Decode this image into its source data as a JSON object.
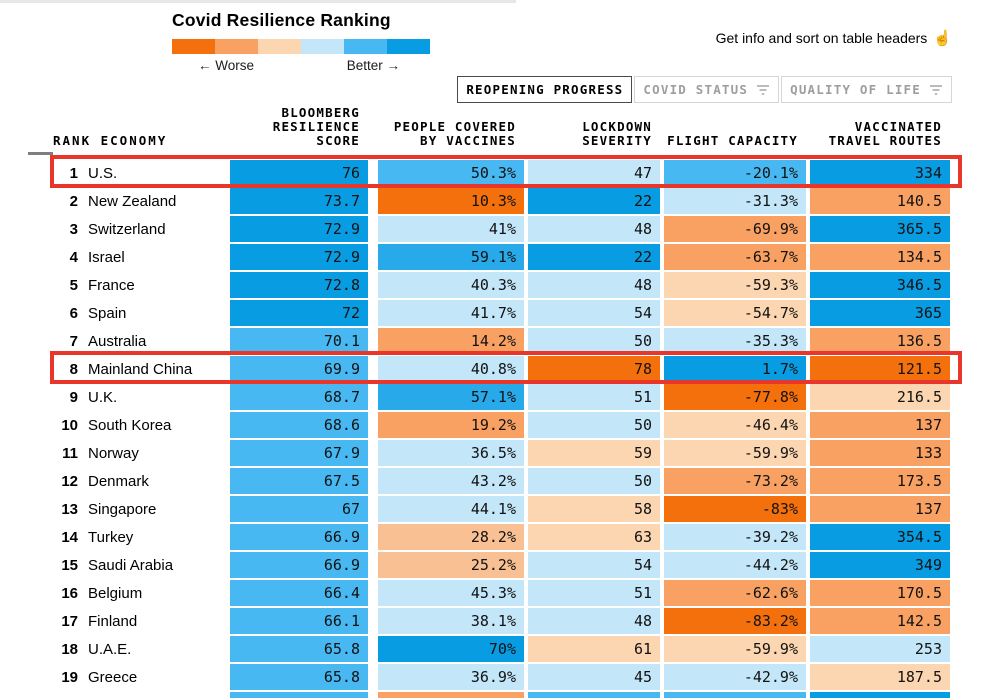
{
  "legend": {
    "title": "Covid Resilience Ranking",
    "worse_label": "← Worse",
    "better_label": "Better →"
  },
  "info": {
    "text": "Get info and sort on table headers",
    "icon": "☝"
  },
  "tabs": [
    {
      "label": "REOPENING PROGRESS",
      "active": true,
      "filter_icon": false
    },
    {
      "label": "COVID STATUS",
      "active": false,
      "filter_icon": true
    },
    {
      "label": "QUALITY OF LIFE",
      "active": false,
      "filter_icon": true
    }
  ],
  "annotations": {
    "highlight_color": "#e8362a",
    "highlighted_rows": [
      "U.S.",
      "Mainland China"
    ]
  },
  "chart_data": {
    "type": "table",
    "title": "Covid Resilience Ranking",
    "legend_note": "heatmap cells colored from orange (worse) to blue (better)",
    "palette": {
      "o3": "#f4700d",
      "o2": "#f9a163",
      "o1m": "#f9c193",
      "o1": "#fcd5b1",
      "b1": "#c3e6f9",
      "b2": "#47b8f1",
      "b2m": "#28a9e9",
      "b3": "#089de2"
    },
    "legend_bins": [
      "o3",
      "o2",
      "o1",
      "b1",
      "b2",
      "b3"
    ],
    "headers": {
      "rank_economy": "RANK ECONOMY",
      "score": [
        "BLOOMBERG",
        "RESILIENCE",
        "SCORE"
      ],
      "vaccines": [
        "PEOPLE COVERED",
        "BY VACCINES"
      ],
      "lockdown": [
        "LOCKDOWN",
        "SEVERITY"
      ],
      "flight": [
        "FLIGHT CAPACITY"
      ],
      "routes": [
        "VACCINATED",
        "TRAVEL ROUTES"
      ]
    },
    "columns": [
      "Bloomberg Resilience Score",
      "People Covered by Vaccines",
      "Lockdown Severity",
      "Flight Capacity",
      "Vaccinated Travel Routes"
    ],
    "rows": [
      {
        "rank": "1",
        "economy": "U.S.",
        "highlight": true,
        "cells": [
          {
            "v": "76",
            "c": "b3"
          },
          {
            "v": "50.3%",
            "c": "b2"
          },
          {
            "v": "47",
            "c": "b1"
          },
          {
            "v": "-20.1%",
            "c": "b2"
          },
          {
            "v": "334",
            "c": "b3"
          }
        ]
      },
      {
        "rank": "2",
        "economy": "New Zealand",
        "highlight": false,
        "cells": [
          {
            "v": "73.7",
            "c": "b3"
          },
          {
            "v": "10.3%",
            "c": "o3"
          },
          {
            "v": "22",
            "c": "b3"
          },
          {
            "v": "-31.3%",
            "c": "b1"
          },
          {
            "v": "140.5",
            "c": "o2"
          }
        ]
      },
      {
        "rank": "3",
        "economy": "Switzerland",
        "highlight": false,
        "cells": [
          {
            "v": "72.9",
            "c": "b3"
          },
          {
            "v": "41%",
            "c": "b1"
          },
          {
            "v": "48",
            "c": "b1"
          },
          {
            "v": "-69.9%",
            "c": "o2"
          },
          {
            "v": "365.5",
            "c": "b3"
          }
        ]
      },
      {
        "rank": "4",
        "economy": "Israel",
        "highlight": false,
        "cells": [
          {
            "v": "72.9",
            "c": "b3"
          },
          {
            "v": "59.1%",
            "c": "b2m"
          },
          {
            "v": "22",
            "c": "b3"
          },
          {
            "v": "-63.7%",
            "c": "o2"
          },
          {
            "v": "134.5",
            "c": "o2"
          }
        ]
      },
      {
        "rank": "5",
        "economy": "France",
        "highlight": false,
        "cells": [
          {
            "v": "72.8",
            "c": "b3"
          },
          {
            "v": "40.3%",
            "c": "b1"
          },
          {
            "v": "48",
            "c": "b1"
          },
          {
            "v": "-59.3%",
            "c": "o1"
          },
          {
            "v": "346.5",
            "c": "b3"
          }
        ]
      },
      {
        "rank": "6",
        "economy": "Spain",
        "highlight": false,
        "cells": [
          {
            "v": "72",
            "c": "b3"
          },
          {
            "v": "41.7%",
            "c": "b1"
          },
          {
            "v": "54",
            "c": "b1"
          },
          {
            "v": "-54.7%",
            "c": "o1"
          },
          {
            "v": "365",
            "c": "b3"
          }
        ]
      },
      {
        "rank": "7",
        "economy": "Australia",
        "highlight": false,
        "cells": [
          {
            "v": "70.1",
            "c": "b2"
          },
          {
            "v": "14.2%",
            "c": "o2"
          },
          {
            "v": "50",
            "c": "b1"
          },
          {
            "v": "-35.3%",
            "c": "b1"
          },
          {
            "v": "136.5",
            "c": "o2"
          }
        ]
      },
      {
        "rank": "8",
        "economy": "Mainland China",
        "highlight": true,
        "cells": [
          {
            "v": "69.9",
            "c": "b2"
          },
          {
            "v": "40.8%",
            "c": "b1"
          },
          {
            "v": "78",
            "c": "o3"
          },
          {
            "v": "1.7%",
            "c": "b3"
          },
          {
            "v": "121.5",
            "c": "o3"
          }
        ]
      },
      {
        "rank": "9",
        "economy": "U.K.",
        "highlight": false,
        "cells": [
          {
            "v": "68.7",
            "c": "b2"
          },
          {
            "v": "57.1%",
            "c": "b2m"
          },
          {
            "v": "51",
            "c": "b1"
          },
          {
            "v": "-77.8%",
            "c": "o3"
          },
          {
            "v": "216.5",
            "c": "o1"
          }
        ]
      },
      {
        "rank": "10",
        "economy": "South Korea",
        "highlight": false,
        "cells": [
          {
            "v": "68.6",
            "c": "b2"
          },
          {
            "v": "19.2%",
            "c": "o2"
          },
          {
            "v": "50",
            "c": "b1"
          },
          {
            "v": "-46.4%",
            "c": "o1"
          },
          {
            "v": "137",
            "c": "o2"
          }
        ]
      },
      {
        "rank": "11",
        "economy": "Norway",
        "highlight": false,
        "cells": [
          {
            "v": "67.9",
            "c": "b2"
          },
          {
            "v": "36.5%",
            "c": "b1"
          },
          {
            "v": "59",
            "c": "o1"
          },
          {
            "v": "-59.9%",
            "c": "o1"
          },
          {
            "v": "133",
            "c": "o2"
          }
        ]
      },
      {
        "rank": "12",
        "economy": "Denmark",
        "highlight": false,
        "cells": [
          {
            "v": "67.5",
            "c": "b2"
          },
          {
            "v": "43.2%",
            "c": "b1"
          },
          {
            "v": "50",
            "c": "b1"
          },
          {
            "v": "-73.2%",
            "c": "o2"
          },
          {
            "v": "173.5",
            "c": "o2"
          }
        ]
      },
      {
        "rank": "13",
        "economy": "Singapore",
        "highlight": false,
        "cells": [
          {
            "v": "67",
            "c": "b2"
          },
          {
            "v": "44.1%",
            "c": "b1"
          },
          {
            "v": "58",
            "c": "o1"
          },
          {
            "v": "-83%",
            "c": "o3"
          },
          {
            "v": "137",
            "c": "o2"
          }
        ]
      },
      {
        "rank": "14",
        "economy": "Turkey",
        "highlight": false,
        "cells": [
          {
            "v": "66.9",
            "c": "b2"
          },
          {
            "v": "28.2%",
            "c": "o1m"
          },
          {
            "v": "63",
            "c": "o1"
          },
          {
            "v": "-39.2%",
            "c": "b1"
          },
          {
            "v": "354.5",
            "c": "b3"
          }
        ]
      },
      {
        "rank": "15",
        "economy": "Saudi Arabia",
        "highlight": false,
        "cells": [
          {
            "v": "66.9",
            "c": "b2"
          },
          {
            "v": "25.2%",
            "c": "o1m"
          },
          {
            "v": "54",
            "c": "b1"
          },
          {
            "v": "-44.2%",
            "c": "b1"
          },
          {
            "v": "349",
            "c": "b3"
          }
        ]
      },
      {
        "rank": "16",
        "economy": "Belgium",
        "highlight": false,
        "cells": [
          {
            "v": "66.4",
            "c": "b2"
          },
          {
            "v": "45.3%",
            "c": "b1"
          },
          {
            "v": "51",
            "c": "b1"
          },
          {
            "v": "-62.6%",
            "c": "o2"
          },
          {
            "v": "170.5",
            "c": "o2"
          }
        ]
      },
      {
        "rank": "17",
        "economy": "Finland",
        "highlight": false,
        "cells": [
          {
            "v": "66.1",
            "c": "b2"
          },
          {
            "v": "38.1%",
            "c": "b1"
          },
          {
            "v": "48",
            "c": "b1"
          },
          {
            "v": "-83.2%",
            "c": "o3"
          },
          {
            "v": "142.5",
            "c": "o2"
          }
        ]
      },
      {
        "rank": "18",
        "economy": "U.A.E.",
        "highlight": false,
        "cells": [
          {
            "v": "65.8",
            "c": "b2"
          },
          {
            "v": "70%",
            "c": "b3"
          },
          {
            "v": "61",
            "c": "o1"
          },
          {
            "v": "-59.9%",
            "c": "o1"
          },
          {
            "v": "253",
            "c": "b1"
          }
        ]
      },
      {
        "rank": "19",
        "economy": "Greece",
        "highlight": false,
        "cells": [
          {
            "v": "65.8",
            "c": "b2"
          },
          {
            "v": "36.9%",
            "c": "b1"
          },
          {
            "v": "45",
            "c": "b1"
          },
          {
            "v": "-42.9%",
            "c": "b1"
          },
          {
            "v": "187.5",
            "c": "o1"
          }
        ]
      }
    ],
    "partial_next_row_colors": [
      "b2",
      "o2",
      "b2",
      "b2",
      "b3"
    ]
  }
}
